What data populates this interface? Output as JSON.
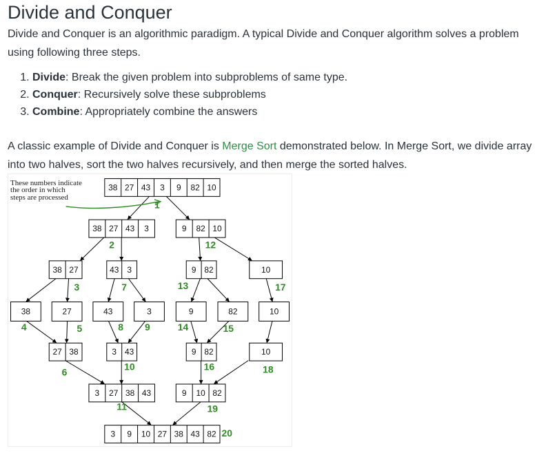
{
  "article": {
    "title": "Divide and Conquer",
    "intro": "Divide and Conquer is an algorithmic paradigm. A typical Divide and Conquer algorithm solves a problem using following three steps.",
    "steps": [
      {
        "term": "Divide",
        "text": ": Break the given problem into subproblems of same type."
      },
      {
        "term": "Conquer",
        "text": ": Recursively solve these subproblems"
      },
      {
        "term": "Combine",
        "text": ": Appropriately combine the answers"
      }
    ],
    "example_before": "A classic example of Divide and Conquer is ",
    "example_link": "Merge Sort",
    "example_after": " demonstrated below. In Merge Sort, we divide array into two halves, sort the two halves recursively, and then merge the sorted halves."
  },
  "diagram": {
    "note_lines": [
      "These numbers indicate",
      "the order in which",
      "steps are processed"
    ],
    "nodes": [
      {
        "id": "n0",
        "cells": [
          "38",
          "27",
          "43",
          "3",
          "9",
          "82",
          "10"
        ]
      },
      {
        "id": "n1",
        "cells": [
          "38",
          "27",
          "43",
          "3"
        ]
      },
      {
        "id": "n2",
        "cells": [
          "9",
          "82",
          "10"
        ]
      },
      {
        "id": "n3",
        "cells": [
          "38",
          "27"
        ]
      },
      {
        "id": "n4",
        "cells": [
          "43",
          "3"
        ]
      },
      {
        "id": "n5",
        "cells": [
          "9",
          "82"
        ]
      },
      {
        "id": "n6",
        "cells": [
          "10"
        ]
      },
      {
        "id": "n7",
        "cells": [
          "38"
        ]
      },
      {
        "id": "n8",
        "cells": [
          "27"
        ]
      },
      {
        "id": "n9",
        "cells": [
          "43"
        ]
      },
      {
        "id": "n10",
        "cells": [
          "3"
        ]
      },
      {
        "id": "n11",
        "cells": [
          "9"
        ]
      },
      {
        "id": "n12",
        "cells": [
          "82"
        ]
      },
      {
        "id": "n13",
        "cells": [
          "10"
        ]
      },
      {
        "id": "n14",
        "cells": [
          "27",
          "38"
        ]
      },
      {
        "id": "n15",
        "cells": [
          "3",
          "43"
        ]
      },
      {
        "id": "n16",
        "cells": [
          "9",
          "82"
        ]
      },
      {
        "id": "n17",
        "cells": [
          "10"
        ]
      },
      {
        "id": "n18",
        "cells": [
          "3",
          "27",
          "38",
          "43"
        ]
      },
      {
        "id": "n19",
        "cells": [
          "9",
          "10",
          "82"
        ]
      },
      {
        "id": "n20",
        "cells": [
          "3",
          "9",
          "10",
          "27",
          "38",
          "43",
          "82"
        ]
      }
    ],
    "step_labels": [
      "1",
      "2",
      "3",
      "4",
      "5",
      "6",
      "7",
      "8",
      "9",
      "10",
      "11",
      "12",
      "13",
      "14",
      "15",
      "16",
      "17",
      "18",
      "19",
      "20"
    ],
    "accent_color": "#2e8b22"
  }
}
